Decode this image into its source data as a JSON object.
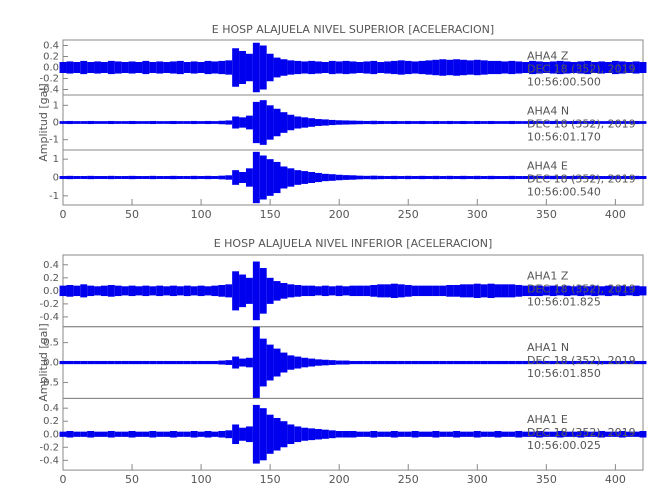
{
  "chart_data": [
    {
      "type": "waveform",
      "title": "E HOSP ALAJUELA NIVEL SUPERIOR [ACELERACION]",
      "ylabel": "Amplitud [gal]",
      "x": [
        0,
        5,
        10,
        15,
        20,
        25,
        30,
        35,
        40,
        45,
        50,
        55,
        60,
        65,
        70,
        75,
        80,
        85,
        90,
        95,
        100,
        105,
        110,
        115,
        120,
        125,
        130,
        135,
        140,
        145,
        150,
        155,
        160,
        165,
        170,
        175,
        180,
        185,
        190,
        195,
        200,
        205,
        210,
        215,
        220,
        225,
        230,
        235,
        240,
        245,
        250,
        255,
        260,
        265,
        270,
        275,
        280,
        285,
        290,
        295,
        300,
        305,
        310,
        315,
        320,
        325,
        330,
        335,
        340,
        345,
        350,
        355,
        360,
        365,
        370,
        375,
        380,
        385,
        390,
        395,
        400,
        405,
        410,
        415,
        420
      ],
      "xlim": [
        0,
        420
      ],
      "xticks": [
        0,
        50,
        100,
        150,
        200,
        250,
        300,
        350,
        400
      ],
      "panels": [
        {
          "station": "AHA4   Z",
          "date": "DEC 18 (352), 2019",
          "time": "10:56:00.500",
          "color": "#0000ee",
          "ylim": [
            -0.5,
            0.5
          ],
          "yticks": [
            0.4,
            0.2,
            {
              "value": 0,
              "label": "0.0"
            },
            -0.2,
            -0.4
          ],
          "values": [
            0.1,
            0.11,
            0.1,
            0.12,
            0.1,
            0.11,
            0.1,
            0.12,
            0.11,
            0.1,
            0.11,
            0.1,
            0.12,
            0.1,
            0.11,
            0.1,
            0.11,
            0.12,
            0.1,
            0.11,
            0.1,
            0.12,
            0.11,
            0.12,
            0.13,
            0.35,
            0.3,
            0.25,
            0.45,
            0.4,
            0.25,
            0.18,
            0.15,
            0.13,
            0.12,
            0.11,
            0.12,
            0.11,
            0.1,
            0.12,
            0.11,
            0.12,
            0.11,
            0.1,
            0.11,
            0.12,
            0.1,
            0.11,
            0.12,
            0.13,
            0.12,
            0.11,
            0.12,
            0.13,
            0.14,
            0.15,
            0.14,
            0.15,
            0.14,
            0.13,
            0.14,
            0.13,
            0.12,
            0.12,
            0.11,
            0.12,
            0.11,
            0.1,
            0.12,
            0.11,
            0.1,
            0.11,
            0.12,
            0.11,
            0.1,
            0.11,
            0.12,
            0.1,
            0.11,
            0.1,
            0.12,
            0.11,
            0.1,
            0.11,
            0.1
          ]
        },
        {
          "station": "AHA4   N",
          "date": "DEC 18 (352), 2019",
          "time": "10:56:01.170",
          "color": "#0000ee",
          "ylim": [
            -1.6,
            1.6
          ],
          "yticks": [
            1,
            0,
            -1
          ],
          "values": [
            0.08,
            0.09,
            0.08,
            0.08,
            0.09,
            0.08,
            0.08,
            0.09,
            0.08,
            0.08,
            0.09,
            0.08,
            0.08,
            0.09,
            0.08,
            0.08,
            0.09,
            0.08,
            0.08,
            0.09,
            0.08,
            0.09,
            0.08,
            0.1,
            0.12,
            0.35,
            0.3,
            0.4,
            1.2,
            1.3,
            1.0,
            0.8,
            0.6,
            0.45,
            0.35,
            0.3,
            0.25,
            0.2,
            0.18,
            0.15,
            0.13,
            0.12,
            0.11,
            0.1,
            0.09,
            0.1,
            0.09,
            0.08,
            0.09,
            0.08,
            0.09,
            0.08,
            0.09,
            0.08,
            0.09,
            0.08,
            0.09,
            0.08,
            0.09,
            0.08,
            0.09,
            0.08,
            0.09,
            0.08,
            0.08,
            0.09,
            0.08,
            0.08,
            0.09,
            0.08,
            0.08,
            0.09,
            0.08,
            0.08,
            0.09,
            0.08,
            0.08,
            0.09,
            0.08,
            0.08,
            0.09,
            0.08,
            0.08,
            0.09,
            0.08
          ]
        },
        {
          "station": "AHA4   E",
          "date": "DEC 18 (352), 2019",
          "time": "10:56:00.540",
          "color": "#0000ee",
          "ylim": [
            -1.5,
            1.5
          ],
          "yticks": [
            1,
            0,
            -1
          ],
          "values": [
            0.08,
            0.09,
            0.08,
            0.08,
            0.09,
            0.08,
            0.08,
            0.09,
            0.08,
            0.08,
            0.09,
            0.08,
            0.08,
            0.09,
            0.08,
            0.08,
            0.09,
            0.08,
            0.08,
            0.09,
            0.08,
            0.09,
            0.08,
            0.1,
            0.12,
            0.4,
            0.3,
            0.5,
            1.4,
            1.2,
            1.0,
            0.85,
            0.6,
            0.5,
            0.4,
            0.35,
            0.3,
            0.25,
            0.2,
            0.18,
            0.15,
            0.13,
            0.12,
            0.1,
            0.09,
            0.1,
            0.09,
            0.08,
            0.09,
            0.08,
            0.09,
            0.08,
            0.09,
            0.08,
            0.09,
            0.08,
            0.09,
            0.08,
            0.09,
            0.08,
            0.09,
            0.08,
            0.09,
            0.08,
            0.08,
            0.09,
            0.08,
            0.08,
            0.09,
            0.08,
            0.08,
            0.09,
            0.08,
            0.08,
            0.09,
            0.08,
            0.08,
            0.09,
            0.08,
            0.08,
            0.09,
            0.08,
            0.08,
            0.09,
            0.08
          ]
        }
      ]
    },
    {
      "type": "waveform",
      "title": "E HOSP ALAJUELA NIVEL INFERIOR [ACELERACION]",
      "ylabel": "Amplitud [gal]",
      "x": [
        0,
        5,
        10,
        15,
        20,
        25,
        30,
        35,
        40,
        45,
        50,
        55,
        60,
        65,
        70,
        75,
        80,
        85,
        90,
        95,
        100,
        105,
        110,
        115,
        120,
        125,
        130,
        135,
        140,
        145,
        150,
        155,
        160,
        165,
        170,
        175,
        180,
        185,
        190,
        195,
        200,
        205,
        210,
        215,
        220,
        225,
        230,
        235,
        240,
        245,
        250,
        255,
        260,
        265,
        270,
        275,
        280,
        285,
        290,
        295,
        300,
        305,
        310,
        315,
        320,
        325,
        330,
        335,
        340,
        345,
        350,
        355,
        360,
        365,
        370,
        375,
        380,
        385,
        390,
        395,
        400,
        405,
        410,
        415,
        420
      ],
      "xlim": [
        0,
        420
      ],
      "xticks": [
        0,
        50,
        100,
        150,
        200,
        250,
        300,
        350,
        400
      ],
      "panels": [
        {
          "station": "AHA1   Z",
          "date": "DEC 18 (352), 2019",
          "time": "10:56:01.825",
          "color": "#0000ee",
          "ylim": [
            -0.55,
            0.55
          ],
          "yticks": [
            0.4,
            0.2,
            {
              "value": 0,
              "label": "0.0"
            },
            -0.2,
            -0.4
          ],
          "values": [
            0.08,
            0.09,
            0.08,
            0.1,
            0.08,
            0.07,
            0.08,
            0.09,
            0.08,
            0.07,
            0.08,
            0.07,
            0.08,
            0.07,
            0.08,
            0.07,
            0.08,
            0.07,
            0.08,
            0.07,
            0.08,
            0.07,
            0.08,
            0.09,
            0.1,
            0.3,
            0.25,
            0.2,
            0.45,
            0.35,
            0.2,
            0.15,
            0.12,
            0.1,
            0.09,
            0.08,
            0.08,
            0.07,
            0.08,
            0.07,
            0.08,
            0.07,
            0.08,
            0.08,
            0.08,
            0.09,
            0.1,
            0.1,
            0.11,
            0.1,
            0.09,
            0.08,
            0.08,
            0.08,
            0.08,
            0.08,
            0.09,
            0.09,
            0.1,
            0.1,
            0.11,
            0.1,
            0.11,
            0.1,
            0.1,
            0.1,
            0.09,
            0.08,
            0.08,
            0.08,
            0.07,
            0.08,
            0.07,
            0.08,
            0.07,
            0.08,
            0.07,
            0.08,
            0.07,
            0.08,
            0.07,
            0.08,
            0.07,
            0.08,
            0.07
          ]
        },
        {
          "station": "AHA1   N",
          "date": "DEC 18 (352), 2019",
          "time": "10:56:01.850",
          "color": "#0000ee",
          "ylim": [
            -0.9,
            0.9
          ],
          "yticks": [
            0.5,
            {
              "value": 0,
              "label": "0.0"
            },
            -0.5
          ],
          "values": [
            0.04,
            0.04,
            0.04,
            0.04,
            0.04,
            0.04,
            0.04,
            0.04,
            0.04,
            0.04,
            0.04,
            0.04,
            0.04,
            0.04,
            0.04,
            0.04,
            0.04,
            0.04,
            0.04,
            0.04,
            0.04,
            0.04,
            0.04,
            0.05,
            0.06,
            0.15,
            0.1,
            0.12,
            0.9,
            0.6,
            0.45,
            0.35,
            0.25,
            0.18,
            0.15,
            0.12,
            0.1,
            0.08,
            0.07,
            0.06,
            0.05,
            0.05,
            0.04,
            0.04,
            0.04,
            0.04,
            0.04,
            0.04,
            0.04,
            0.04,
            0.04,
            0.04,
            0.04,
            0.04,
            0.04,
            0.04,
            0.04,
            0.04,
            0.04,
            0.04,
            0.04,
            0.04,
            0.04,
            0.04,
            0.04,
            0.04,
            0.04,
            0.04,
            0.04,
            0.04,
            0.04,
            0.04,
            0.04,
            0.04,
            0.04,
            0.04,
            0.04,
            0.04,
            0.04,
            0.04,
            0.04,
            0.04,
            0.04,
            0.04,
            0.04
          ]
        },
        {
          "station": "AHA1   E",
          "date": "DEC 18 (352), 2019",
          "time": "10:56:00.025",
          "color": "#0000ee",
          "ylim": [
            -0.55,
            0.55
          ],
          "yticks": [
            0.4,
            0.2,
            {
              "value": 0,
              "label": "0.0"
            },
            -0.2,
            -0.4
          ],
          "values": [
            0.04,
            0.05,
            0.04,
            0.04,
            0.05,
            0.04,
            0.04,
            0.05,
            0.04,
            0.04,
            0.05,
            0.04,
            0.04,
            0.05,
            0.04,
            0.04,
            0.05,
            0.04,
            0.04,
            0.05,
            0.04,
            0.05,
            0.04,
            0.05,
            0.06,
            0.15,
            0.1,
            0.12,
            0.45,
            0.4,
            0.3,
            0.25,
            0.2,
            0.15,
            0.12,
            0.1,
            0.09,
            0.08,
            0.07,
            0.06,
            0.05,
            0.05,
            0.05,
            0.04,
            0.04,
            0.05,
            0.04,
            0.04,
            0.05,
            0.04,
            0.04,
            0.05,
            0.04,
            0.04,
            0.05,
            0.04,
            0.04,
            0.05,
            0.04,
            0.04,
            0.05,
            0.04,
            0.04,
            0.05,
            0.04,
            0.04,
            0.05,
            0.04,
            0.04,
            0.05,
            0.04,
            0.04,
            0.05,
            0.04,
            0.04,
            0.05,
            0.04,
            0.04,
            0.05,
            0.04,
            0.04,
            0.05,
            0.04,
            0.04,
            0.05
          ]
        }
      ]
    }
  ]
}
